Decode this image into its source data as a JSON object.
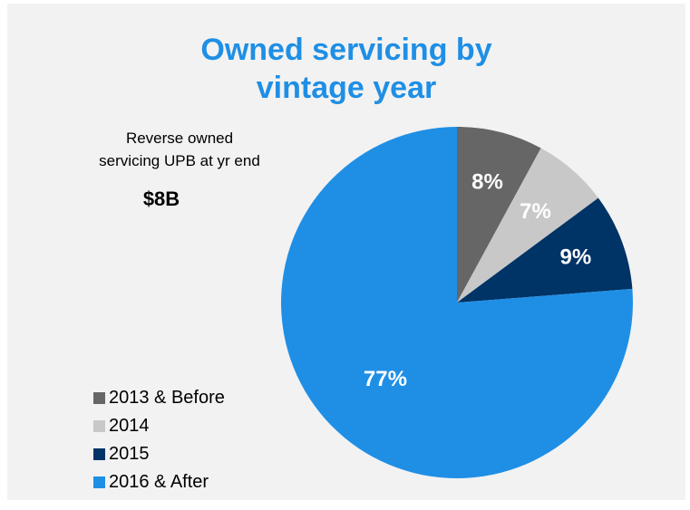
{
  "chart_data": {
    "type": "pie",
    "title_lines": [
      "Owned servicing by",
      "vintage year"
    ],
    "annotation": {
      "label_lines": [
        "Reverse owned",
        "servicing UPB at yr end"
      ],
      "value": "$8B"
    },
    "categories": [
      "2013 & Before",
      "2014",
      "2015",
      "2016 & After"
    ],
    "values": [
      8,
      7,
      9,
      77
    ],
    "data_labels": [
      "8%",
      "7%",
      "9%",
      "77%"
    ],
    "colors": [
      "#666666",
      "#c8c8c8",
      "#003366",
      "#1f8fe5"
    ],
    "label_colors": [
      "#ffffff",
      "#ffffff",
      "#ffffff",
      "#ffffff"
    ],
    "legend_position": "bottom-left",
    "start_angle_deg": 0,
    "direction": "clockwise"
  }
}
